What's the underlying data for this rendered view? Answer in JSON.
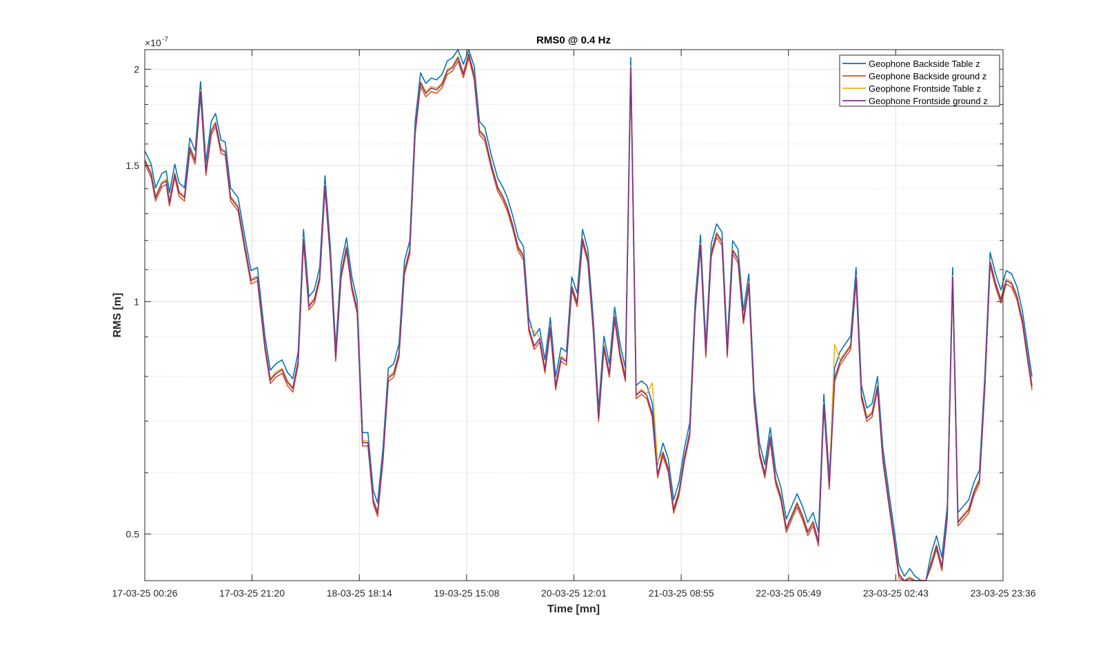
{
  "chart_data": {
    "type": "line",
    "title": "RMS0 @ 0.4 Hz",
    "xlabel": "Time [mn]",
    "ylabel": "RMS [m]",
    "y_exponent_label": "×10",
    "y_exponent_power": "-7",
    "y_scale": "log",
    "ylim": [
      0.435,
      2.12
    ],
    "y_ticks": [
      {
        "value": 0.5,
        "label": "0.5"
      },
      {
        "value": 1.0,
        "label": "1"
      },
      {
        "value": 1.5,
        "label": "1.5"
      },
      {
        "value": 2.0,
        "label": "2"
      }
    ],
    "y_minor_ticks": [
      0.6,
      0.7,
      0.8,
      0.9,
      1.1,
      1.2,
      1.3,
      1.4,
      1.6,
      1.7,
      1.8,
      1.9
    ],
    "x_ticks": [
      "17-03-25 00:26",
      "17-03-25 21:20",
      "18-03-25 18:14",
      "19-03-25 15:08",
      "20-03-25 12:01",
      "21-03-25 08:55",
      "22-03-25 05:49",
      "23-03-25 02:43",
      "23-03-25 23:36"
    ],
    "grid": true,
    "legend_position": "top-right",
    "series": [
      {
        "name": "Geophone Backside Table z",
        "color": "#0072BD",
        "offset": 1.025,
        "bumps": []
      },
      {
        "name": "Geophone Backside ground z",
        "color": "#D95319",
        "offset": 0.985,
        "bumps": []
      },
      {
        "name": "Geophone Frontside Table z",
        "color": "#EDB120",
        "offset": 1.0,
        "bumps": [
          [
            72,
            1.04
          ],
          [
            94,
            1.09
          ],
          [
            128,
            1.1
          ],
          [
            95,
            1.03
          ]
        ]
      },
      {
        "name": "Geophone Frontside ground z",
        "color": "#7E2F8E",
        "offset": 0.995,
        "bumps": []
      }
    ],
    "base_profile_x_range": [
      0,
      8
    ],
    "base_profile": [
      [
        0.0,
        1.53
      ],
      [
        0.06,
        1.47
      ],
      [
        0.1,
        1.37
      ],
      [
        0.16,
        1.43
      ],
      [
        0.2,
        1.44
      ],
      [
        0.23,
        1.35
      ],
      [
        0.28,
        1.47
      ],
      [
        0.32,
        1.39
      ],
      [
        0.37,
        1.37
      ],
      [
        0.42,
        1.59
      ],
      [
        0.47,
        1.53
      ],
      [
        0.52,
        1.88
      ],
      [
        0.57,
        1.48
      ],
      [
        0.62,
        1.67
      ],
      [
        0.66,
        1.71
      ],
      [
        0.71,
        1.58
      ],
      [
        0.75,
        1.57
      ],
      [
        0.8,
        1.37
      ],
      [
        0.87,
        1.33
      ],
      [
        0.93,
        1.19
      ],
      [
        0.99,
        1.07
      ],
      [
        1.05,
        1.08
      ],
      [
        1.12,
        0.88
      ],
      [
        1.17,
        0.795
      ],
      [
        1.22,
        0.81
      ],
      [
        1.28,
        0.82
      ],
      [
        1.33,
        0.79
      ],
      [
        1.38,
        0.775
      ],
      [
        1.43,
        0.84
      ],
      [
        1.48,
        1.21
      ],
      [
        1.53,
        0.99
      ],
      [
        1.58,
        1.01
      ],
      [
        1.63,
        1.08
      ],
      [
        1.68,
        1.42
      ],
      [
        1.73,
        1.15
      ],
      [
        1.78,
        0.85
      ],
      [
        1.83,
        1.09
      ],
      [
        1.88,
        1.18
      ],
      [
        1.93,
        1.05
      ],
      [
        1.98,
        0.98
      ],
      [
        2.03,
        0.66
      ],
      [
        2.08,
        0.66
      ],
      [
        2.13,
        0.555
      ],
      [
        2.17,
        0.535
      ],
      [
        2.22,
        0.63
      ],
      [
        2.27,
        0.8
      ],
      [
        2.32,
        0.81
      ],
      [
        2.37,
        0.86
      ],
      [
        2.42,
        1.1
      ],
      [
        2.47,
        1.17
      ],
      [
        2.52,
        1.67
      ],
      [
        2.57,
        1.93
      ],
      [
        2.62,
        1.87
      ],
      [
        2.67,
        1.9
      ],
      [
        2.72,
        1.89
      ],
      [
        2.77,
        1.92
      ],
      [
        2.82,
        2.0
      ],
      [
        2.87,
        2.02
      ],
      [
        2.92,
        2.08
      ],
      [
        2.97,
        1.98
      ],
      [
        3.02,
        2.1
      ],
      [
        3.07,
        1.97
      ],
      [
        3.12,
        1.67
      ],
      [
        3.17,
        1.64
      ],
      [
        3.23,
        1.51
      ],
      [
        3.29,
        1.41
      ],
      [
        3.34,
        1.37
      ],
      [
        3.38,
        1.33
      ],
      [
        3.43,
        1.26
      ],
      [
        3.48,
        1.18
      ],
      [
        3.53,
        1.15
      ],
      [
        3.58,
        0.93
      ],
      [
        3.63,
        0.88
      ],
      [
        3.68,
        0.9
      ],
      [
        3.73,
        0.82
      ],
      [
        3.78,
        0.93
      ],
      [
        3.83,
        0.78
      ],
      [
        3.88,
        0.85
      ],
      [
        3.93,
        0.84
      ],
      [
        3.98,
        1.05
      ],
      [
        4.03,
        1.0
      ],
      [
        4.08,
        1.21
      ],
      [
        4.13,
        1.14
      ],
      [
        4.18,
        0.93
      ],
      [
        4.23,
        0.71
      ],
      [
        4.28,
        0.88
      ],
      [
        4.33,
        0.81
      ],
      [
        4.38,
        0.96
      ],
      [
        4.43,
        0.86
      ],
      [
        4.48,
        0.8
      ],
      [
        4.53,
        2.02
      ],
      [
        4.58,
        0.76
      ],
      [
        4.63,
        0.77
      ],
      [
        4.68,
        0.76
      ],
      [
        4.73,
        0.72
      ],
      [
        4.78,
        0.6
      ],
      [
        4.83,
        0.64
      ],
      [
        4.88,
        0.61
      ],
      [
        4.93,
        0.54
      ],
      [
        4.98,
        0.57
      ],
      [
        5.03,
        0.63
      ],
      [
        5.08,
        0.68
      ],
      [
        5.13,
        0.98
      ],
      [
        5.18,
        1.19
      ],
      [
        5.23,
        0.86
      ],
      [
        5.28,
        1.16
      ],
      [
        5.33,
        1.23
      ],
      [
        5.38,
        1.2
      ],
      [
        5.43,
        0.86
      ],
      [
        5.48,
        1.17
      ],
      [
        5.53,
        1.14
      ],
      [
        5.58,
        0.95
      ],
      [
        5.63,
        1.06
      ],
      [
        5.68,
        0.75
      ],
      [
        5.73,
        0.64
      ],
      [
        5.78,
        0.6
      ],
      [
        5.83,
        0.67
      ],
      [
        5.88,
        0.59
      ],
      [
        5.93,
        0.56
      ],
      [
        5.98,
        0.51
      ],
      [
        6.03,
        0.53
      ],
      [
        6.08,
        0.55
      ],
      [
        6.13,
        0.53
      ],
      [
        6.18,
        0.505
      ],
      [
        6.23,
        0.52
      ],
      [
        6.28,
        0.49
      ],
      [
        6.33,
        0.74
      ],
      [
        6.38,
        0.58
      ],
      [
        6.43,
        0.8
      ],
      [
        6.48,
        0.84
      ],
      [
        6.53,
        0.86
      ],
      [
        6.58,
        0.88
      ],
      [
        6.63,
        1.08
      ],
      [
        6.68,
        0.76
      ],
      [
        6.73,
        0.71
      ],
      [
        6.78,
        0.72
      ],
      [
        6.83,
        0.78
      ],
      [
        6.88,
        0.63
      ],
      [
        6.93,
        0.56
      ],
      [
        6.98,
        0.5
      ],
      [
        7.03,
        0.445
      ],
      [
        7.08,
        0.43
      ],
      [
        7.13,
        0.44
      ],
      [
        7.18,
        0.43
      ],
      [
        7.23,
        0.425
      ],
      [
        7.28,
        0.415
      ],
      [
        7.33,
        0.46
      ],
      [
        7.38,
        0.485
      ],
      [
        7.43,
        0.455
      ],
      [
        7.48,
        0.53
      ],
      [
        7.53,
        1.08
      ],
      [
        7.58,
        0.52
      ],
      [
        7.63,
        0.53
      ],
      [
        7.68,
        0.54
      ],
      [
        7.73,
        0.57
      ],
      [
        7.78,
        0.59
      ],
      [
        7.83,
        0.78
      ],
      [
        7.88,
        1.13
      ],
      [
        7.93,
        1.06
      ],
      [
        7.98,
        1.01
      ],
      [
        8.03,
        1.07
      ],
      [
        8.08,
        1.06
      ],
      [
        8.13,
        1.02
      ],
      [
        8.18,
        0.95
      ],
      [
        8.23,
        0.85
      ],
      [
        8.27,
        0.78
      ]
    ]
  }
}
